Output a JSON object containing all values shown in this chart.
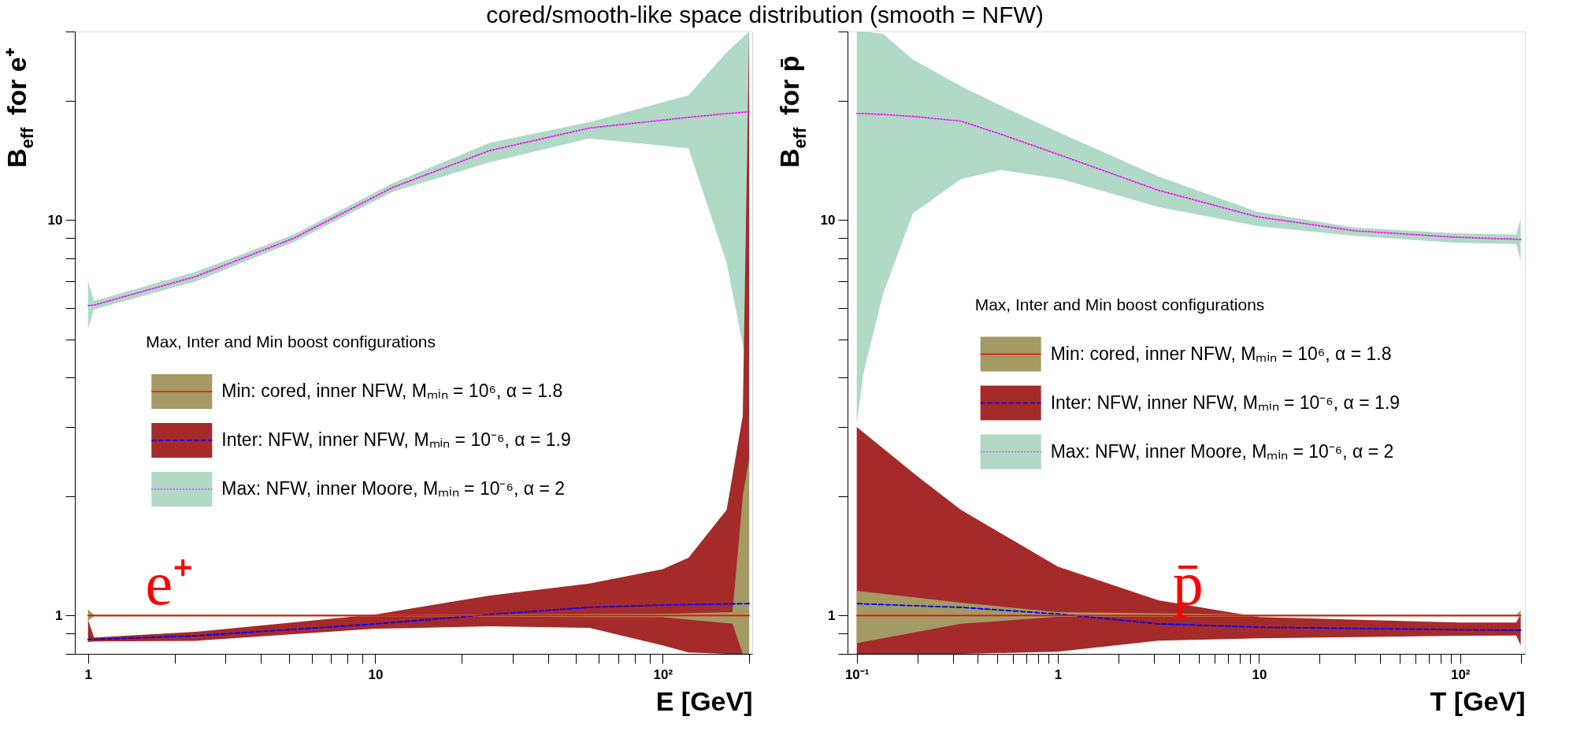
{
  "chart_data": [
    {
      "type": "line",
      "title": "cored/smooth-like space distribution (smooth = NFW)",
      "xlabel": "E [GeV]",
      "ylabel": "B$_{eff}$ for e⁺",
      "log": "xy",
      "grid": false,
      "legend": "center left",
      "legend_title": "Max, Inter and Min boost configurations",
      "xlim": [
        0.9,
        205
      ],
      "ylim": [
        0.8,
        30
      ],
      "xticks": [
        1,
        {
          "value": 2,
          "label": null
        },
        {
          "value": 3,
          "label": null
        },
        {
          "value": 4,
          "label": null
        },
        {
          "value": 5,
          "label": null
        },
        {
          "value": 6,
          "label": null
        },
        {
          "value": 7,
          "label": null
        },
        {
          "value": 8,
          "label": null
        },
        {
          "value": 9,
          "label": null
        },
        10,
        {
          "value": 20,
          "label": null
        },
        {
          "value": 30,
          "label": null
        },
        {
          "value": 40,
          "label": null
        },
        {
          "value": 50,
          "label": null
        },
        {
          "value": 60,
          "label": null
        },
        {
          "value": 70,
          "label": null
        },
        {
          "value": 80,
          "label": null
        },
        {
          "value": 90,
          "label": null
        },
        {
          "value": 100,
          "label": "10²"
        },
        {
          "value": 200,
          "label": null
        }
      ],
      "yticks": [
        {
          "value": 0.8,
          "label": null
        },
        {
          "value": 0.9,
          "label": null
        },
        1,
        {
          "value": 2,
          "label": null
        },
        {
          "value": 3,
          "label": null
        },
        {
          "value": 4,
          "label": null
        },
        {
          "value": 5,
          "label": null
        },
        {
          "value": 6,
          "label": null
        },
        {
          "value": 7,
          "label": null
        },
        {
          "value": 8,
          "label": null
        },
        {
          "value": 9,
          "label": null
        },
        10,
        {
          "value": 20,
          "label": null
        },
        {
          "value": 30,
          "label": null
        }
      ],
      "annotations": [
        "e⁺"
      ],
      "series": [
        {
          "name": "Min: cored, inner NFW, Mₘᵢₙ = 10⁶, α = 1.8",
          "color": "#ff0000",
          "colors": [
            "#a39a64",
            "#a39a64",
            "#a39a64",
            "#a39a64",
            "#a39a64",
            "#a39a64",
            "#a39a64"
          ],
          "line_style": "solid",
          "x": [
            1,
            1.05,
            10,
            100,
            175,
            190,
            200
          ],
          "values": [
            1,
            1,
            1,
            1,
            1,
            1,
            1
          ],
          "lower": [
            0.97,
            0.995,
            0.995,
            0.99,
            0.953,
            0.8,
            0.8
          ],
          "upper": [
            1.035,
            1.005,
            1.005,
            1.01,
            1.02,
            2.0,
            2.5
          ]
        },
        {
          "name": "Inter: NFW, inner NFW, Mₘᵢₙ = 10⁻⁶, α = 1.9",
          "color": "#0000ff",
          "colors": [
            "#a52a2a",
            "#a52a2a",
            "#a52a2a",
            "#a52a2a",
            "#a52a2a",
            "#a52a2a",
            "#a52a2a",
            "#a52a2a",
            "#a52a2a",
            "#a52a2a",
            "#a52a2a"
          ],
          "line_style": "dashed",
          "x": [
            1,
            1.05,
            2.37,
            10,
            25,
            55.6,
            100,
            123,
            167,
            190,
            200
          ],
          "values": [
            0.87,
            0.87,
            0.889,
            0.952,
            1.006,
            1.049,
            1.063,
            1.066,
            1.07,
            1.071,
            1.072
          ],
          "lower": [
            0.857,
            0.86,
            0.863,
            0.926,
            0.939,
            0.931,
            0.84,
            0.806,
            0.8,
            0.8,
            0.8
          ],
          "upper": [
            0.978,
            0.88,
            0.91,
            1.006,
            1.124,
            1.205,
            1.31,
            1.4,
            1.85,
            3.2,
            30
          ]
        },
        {
          "name": "Max: NFW, inner Moore, Mₘᵢₙ = 10⁻⁶, α = 2",
          "color": "#ff00ff",
          "colors": [
            "#b0d9c6",
            "#b0d9c6",
            "#b0d9c6",
            "#b0d9c6",
            "#b0d9c6",
            "#b0d9c6",
            "#b0d9c6",
            "#b0d9c6",
            "#b0d9c6",
            "#b0d9c6"
          ],
          "line_style": "dotted",
          "x": [
            1,
            1.05,
            2.37,
            5.2,
            11.5,
            25,
            55.6,
            123,
            167,
            200
          ],
          "values": [
            6.08,
            6.1,
            7.2,
            9.0,
            12.1,
            15.0,
            17.1,
            18.2,
            18.6,
            18.8
          ],
          "lower": [
            5.3,
            5.95,
            7.0,
            8.8,
            11.8,
            14.0,
            16.1,
            15.2,
            7.8,
            4.0
          ],
          "upper": [
            7.0,
            6.25,
            7.4,
            9.2,
            12.4,
            15.7,
            17.7,
            20.7,
            26.6,
            30
          ]
        }
      ]
    },
    {
      "type": "line",
      "xlabel": "T [GeV]",
      "ylabel": "B$_{eff}$ for p̄",
      "log": "xy",
      "grid": false,
      "legend": "center",
      "legend_title": "Max, Inter and Min boost configurations",
      "xlim": [
        0.09,
        210
      ],
      "ylim": [
        0.8,
        30
      ],
      "xticks": [
        {
          "value": 0.1,
          "label": "10⁻¹"
        },
        {
          "value": 0.2,
          "label": null
        },
        {
          "value": 0.3,
          "label": null
        },
        {
          "value": 0.4,
          "label": null
        },
        {
          "value": 0.5,
          "label": null
        },
        {
          "value": 0.6,
          "label": null
        },
        {
          "value": 0.7,
          "label": null
        },
        {
          "value": 0.8,
          "label": null
        },
        {
          "value": 0.9,
          "label": null
        },
        1,
        {
          "value": 2,
          "label": null
        },
        {
          "value": 3,
          "label": null
        },
        {
          "value": 4,
          "label": null
        },
        {
          "value": 5,
          "label": null
        },
        {
          "value": 6,
          "label": null
        },
        {
          "value": 7,
          "label": null
        },
        {
          "value": 8,
          "label": null
        },
        {
          "value": 9,
          "label": null
        },
        10,
        {
          "value": 20,
          "label": null
        },
        {
          "value": 30,
          "label": null
        },
        {
          "value": 40,
          "label": null
        },
        {
          "value": 50,
          "label": null
        },
        {
          "value": 60,
          "label": null
        },
        {
          "value": 70,
          "label": null
        },
        {
          "value": 80,
          "label": null
        },
        {
          "value": 90,
          "label": null
        },
        {
          "value": 100,
          "label": "10²"
        },
        {
          "value": 200,
          "label": null
        }
      ],
      "yticks": [
        {
          "value": 0.8,
          "label": null
        },
        {
          "value": 0.9,
          "label": null
        },
        1,
        {
          "value": 2,
          "label": null
        },
        {
          "value": 3,
          "label": null
        },
        {
          "value": 4,
          "label": null
        },
        {
          "value": 5,
          "label": null
        },
        {
          "value": 6,
          "label": null
        },
        {
          "value": 7,
          "label": null
        },
        {
          "value": 8,
          "label": null
        },
        {
          "value": 9,
          "label": null
        },
        10,
        {
          "value": 20,
          "label": null
        },
        {
          "value": 30,
          "label": null
        }
      ],
      "annotations": [
        "p̄"
      ],
      "series": [
        {
          "name": "Min: cored, inner NFW, Mₘᵢₙ = 10⁶, α = 1.8",
          "color": "#ff0000",
          "colors": [
            "#a39a64",
            "#a39a64",
            "#a39a64",
            "#a39a64",
            "#a39a64",
            "#a39a64"
          ],
          "line_style": "solid",
          "x": [
            0.1,
            0.33,
            1,
            10,
            190,
            200
          ],
          "values": [
            1,
            1,
            1,
            1,
            1,
            1
          ],
          "lower": [
            0.851,
            0.953,
            0.992,
            0.995,
            0.995,
            0.99
          ],
          "upper": [
            1.155,
            1.078,
            1.02,
            1.005,
            1.005,
            1.03
          ]
        },
        {
          "name": "Inter: NFW, inner NFW, Mₘᵢₙ = 10⁻⁶, α = 1.9",
          "color": "#0000ff",
          "colors": [
            "#a52a2a",
            "#a52a2a",
            "#a52a2a",
            "#a52a2a",
            "#a52a2a",
            "#a52a2a",
            "#a52a2a",
            "#a52a2a",
            "#a52a2a"
          ],
          "line_style": "dashed",
          "x": [
            0.1,
            0.2,
            0.33,
            1,
            3.16,
            10,
            100,
            190,
            200
          ],
          "values": [
            1.072,
            1.058,
            1.049,
            1.009,
            0.953,
            0.934,
            0.921,
            0.918,
            0.918
          ],
          "lower": [
            0.8,
            0.8,
            0.8,
            0.81,
            0.864,
            0.876,
            0.889,
            0.89,
            0.84
          ],
          "upper": [
            3.0,
            2.25,
            1.85,
            1.33,
            1.093,
            0.991,
            0.96,
            0.96,
            1.006
          ]
        },
        {
          "name": "Max: NFW, inner Moore, Mₘᵢₙ = 10⁻⁶, α = 2",
          "color": "#ff00ff",
          "colors": [
            "#b0d9c6",
            "#b0d9c6",
            "#b0d9c6",
            "#b0d9c6",
            "#b0d9c6",
            "#b0d9c6",
            "#b0d9c6",
            "#b0d9c6",
            "#b0d9c6",
            "#b0d9c6",
            "#b0d9c6",
            "#b0d9c6",
            "#b0d9c6"
          ],
          "line_style": "dotted",
          "x": [
            0.1,
            0.108,
            0.135,
            0.19,
            0.33,
            0.52,
            1.03,
            3.16,
            9.8,
            30,
            92.7,
            190,
            200
          ],
          "values": [
            18.6,
            18.6,
            18.5,
            18.3,
            17.8,
            16.5,
            14.6,
            11.9,
            10.2,
            9.4,
            9.06,
            8.95,
            8.93
          ],
          "lower": [
            3.05,
            4.1,
            6.5,
            10.4,
            12.7,
            13.4,
            12.7,
            10.8,
            9.66,
            9.12,
            8.77,
            8.7,
            7.9
          ],
          "upper": [
            30,
            30,
            29.6,
            25.5,
            21.8,
            19.5,
            16.6,
            12.9,
            10.5,
            9.57,
            9.27,
            9.2,
            10.1
          ]
        }
      ]
    }
  ]
}
